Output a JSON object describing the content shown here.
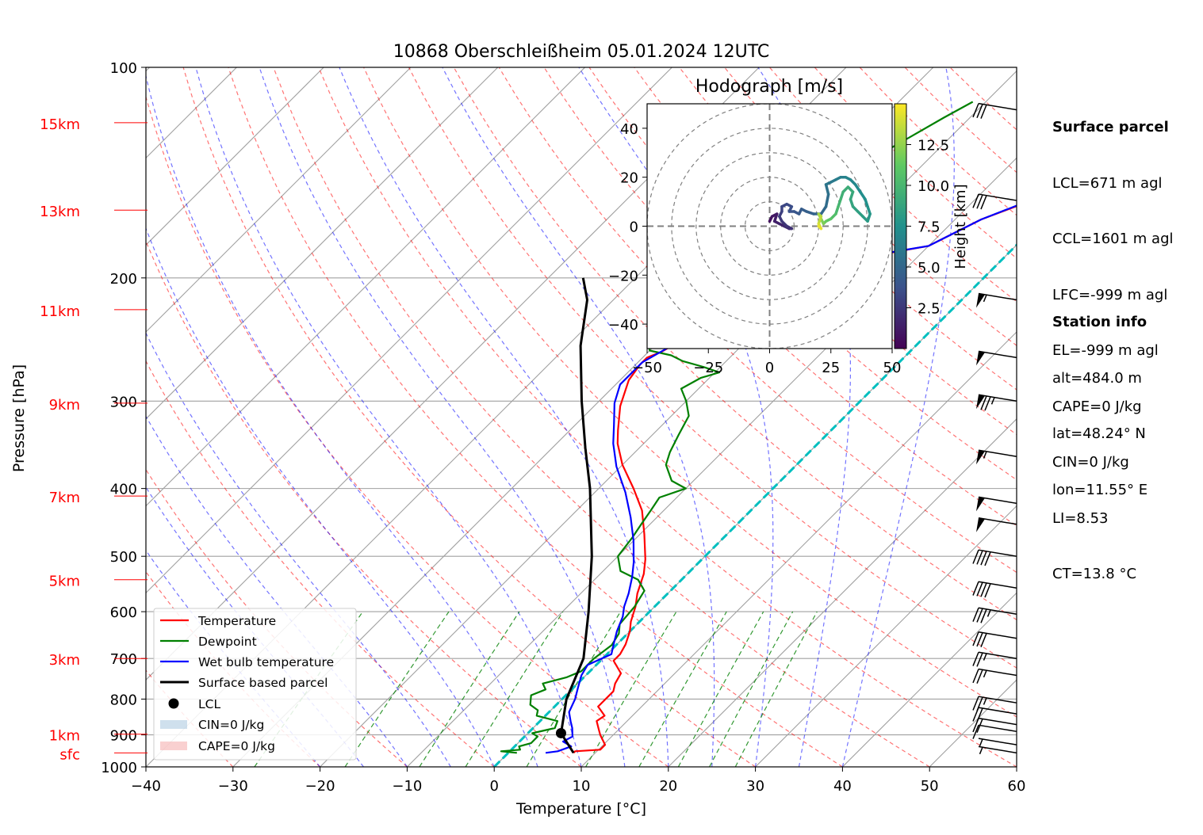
{
  "chart_data": {
    "type": "skew-t",
    "title": "10868 Oberschleißheim 05.01.2024 12UTC",
    "xlabel": "Temperature [°C]",
    "ylabel": "Pressure [hPa]",
    "xlim": [
      -40,
      60
    ],
    "ylim": [
      1000,
      100
    ],
    "x_ticks": [
      -40,
      -30,
      -20,
      -10,
      0,
      10,
      20,
      30,
      40,
      50,
      60
    ],
    "x_tick_labels": [
      "−40",
      "−30",
      "−20",
      "−10",
      "0",
      "10",
      "20",
      "30",
      "40",
      "50",
      "60"
    ],
    "p_ticks": [
      100,
      200,
      300,
      400,
      500,
      600,
      700,
      800,
      900,
      1000
    ],
    "height_labels": [
      {
        "text": "sfc",
        "p": 955
      },
      {
        "text": "1km",
        "p": 898
      },
      {
        "text": "3km",
        "p": 700
      },
      {
        "text": "5km",
        "p": 540
      },
      {
        "text": "7km",
        "p": 410
      },
      {
        "text": "9km",
        "p": 302
      },
      {
        "text": "11km",
        "p": 222
      },
      {
        "text": "13km",
        "p": 160
      },
      {
        "text": "15km",
        "p": 120
      }
    ],
    "colors": {
      "temperature": "#ff0000",
      "dewpoint": "#008000",
      "wetbulb": "#0000ff",
      "parcel": "#000000",
      "zero_isotherm": "#00bfbf",
      "dry_adiabat": "#ff0000",
      "moist_adiabat": "#0000ff",
      "mixing_ratio": "#008000",
      "isotherm": "#a0a0a0"
    },
    "series": [
      {
        "name": "Temperature",
        "points": [
          [
            7.5,
            955
          ],
          [
            7.5,
            950
          ],
          [
            10.2,
            945
          ],
          [
            10.2,
            930
          ],
          [
            8.5,
            900
          ],
          [
            7.5,
            880
          ],
          [
            6.5,
            860
          ],
          [
            6.8,
            845
          ],
          [
            5,
            820
          ],
          [
            5,
            780
          ],
          [
            4.3,
            760
          ],
          [
            3.8,
            735
          ],
          [
            1.5,
            705
          ],
          [
            1.5,
            690
          ],
          [
            1,
            668
          ],
          [
            0,
            640
          ],
          [
            -1,
            620
          ],
          [
            -2.2,
            590
          ],
          [
            -3.5,
            565
          ],
          [
            -5,
            530
          ],
          [
            -6.5,
            505
          ],
          [
            -9.5,
            465
          ],
          [
            -12.5,
            430
          ],
          [
            -16,
            400
          ],
          [
            -20,
            370
          ],
          [
            -23,
            345
          ],
          [
            -24.5,
            330
          ],
          [
            -27,
            305
          ],
          [
            -29,
            280
          ],
          [
            -29.5,
            266
          ],
          [
            -29.5,
            260
          ],
          [
            -28.5,
            255
          ],
          [
            -27.5,
            245
          ],
          [
            -26.5,
            240
          ],
          [
            -26.5,
            228
          ],
          [
            -24.5,
            220
          ],
          [
            -24.5,
            212
          ],
          [
            -25,
            205
          ],
          [
            -24.5,
            198
          ],
          [
            -22,
            194
          ],
          [
            -10,
            180
          ],
          [
            -7,
            165
          ],
          [
            -1.5,
            150
          ],
          [
            -1.5,
            138
          ],
          [
            -3,
            130
          ],
          [
            -3,
            120
          ],
          [
            -1.5,
            110
          ],
          [
            -1.5,
            100
          ],
          [
            1.5,
            96
          ],
          [
            3.5,
            90
          ],
          [
            6.5,
            85
          ],
          [
            7.5,
            78
          ],
          [
            8,
            74
          ]
        ]
      },
      {
        "name": "Dewpoint",
        "points": [
          [
            1,
            955
          ],
          [
            -1,
            950
          ],
          [
            1,
            945
          ],
          [
            0.5,
            935
          ],
          [
            1.5,
            925
          ],
          [
            1.5,
            905
          ],
          [
            0.5,
            895
          ],
          [
            2.5,
            880
          ],
          [
            2,
            860
          ],
          [
            -1,
            845
          ],
          [
            -1.5,
            830
          ],
          [
            -3,
            815
          ],
          [
            -4,
            790
          ],
          [
            -3,
            775
          ],
          [
            -4,
            760
          ],
          [
            -2,
            745
          ],
          [
            -1,
            730
          ],
          [
            -1,
            700
          ],
          [
            -0.5,
            670
          ],
          [
            -1,
            645
          ],
          [
            -2,
            625
          ],
          [
            -2.3,
            590
          ],
          [
            -3,
            560
          ],
          [
            -5,
            540
          ],
          [
            -8,
            525
          ],
          [
            -10,
            500
          ],
          [
            -10.5,
            470
          ],
          [
            -11,
            450
          ],
          [
            -11.5,
            430
          ],
          [
            -12,
            412
          ],
          [
            -10,
            400
          ],
          [
            -12.5,
            390
          ],
          [
            -15,
            370
          ],
          [
            -16,
            355
          ],
          [
            -17,
            335
          ],
          [
            -18,
            315
          ],
          [
            -20,
            300
          ],
          [
            -22,
            288
          ],
          [
            -21,
            278
          ],
          [
            -19.5,
            273
          ],
          [
            -22,
            268
          ],
          [
            -25,
            263
          ],
          [
            -27,
            258
          ],
          [
            -30,
            254
          ],
          [
            -31,
            248
          ],
          [
            -30,
            240
          ],
          [
            -30,
            230
          ],
          [
            -31,
            220
          ],
          [
            -31.5,
            212
          ],
          [
            -32,
            205
          ],
          [
            -31,
            195
          ],
          [
            -31.5,
            185
          ],
          [
            -30,
            170
          ],
          [
            -28,
            158
          ],
          [
            -27,
            145
          ],
          [
            -25.5,
            130
          ],
          [
            -23,
            118
          ],
          [
            -21.5,
            112
          ]
        ]
      },
      {
        "name": "Wet bulb temperature",
        "points": [
          [
            4.3,
            955
          ],
          [
            5.5,
            950
          ],
          [
            6.5,
            935
          ],
          [
            5,
            920
          ],
          [
            5.5,
            905
          ],
          [
            4.5,
            880
          ],
          [
            3.5,
            860
          ],
          [
            2.3,
            835
          ],
          [
            1.5,
            800
          ],
          [
            0.5,
            770
          ],
          [
            -0.5,
            740
          ],
          [
            -1,
            715
          ],
          [
            0.5,
            690
          ],
          [
            -0.5,
            665
          ],
          [
            -1.5,
            640
          ],
          [
            -2.5,
            610
          ],
          [
            -3.5,
            590
          ],
          [
            -4.5,
            565
          ],
          [
            -6,
            535
          ],
          [
            -7.5,
            510
          ],
          [
            -10,
            475
          ],
          [
            -13,
            440
          ],
          [
            -16.5,
            405
          ],
          [
            -20.5,
            372
          ],
          [
            -23.5,
            345
          ],
          [
            -25.5,
            325
          ],
          [
            -28,
            302
          ],
          [
            -29.5,
            284
          ],
          [
            -29.5,
            264
          ],
          [
            -27.5,
            245
          ],
          [
            -27,
            228
          ],
          [
            -25,
            215
          ],
          [
            -25,
            200
          ],
          [
            -22,
            193
          ],
          [
            -10,
            180
          ],
          [
            -7,
            165
          ],
          [
            -1.8,
            150
          ],
          [
            -1.5,
            138
          ],
          [
            -2.5,
            130
          ],
          [
            -2.8,
            120
          ],
          [
            -1.5,
            110
          ],
          [
            -1.5,
            100
          ],
          [
            1.5,
            96
          ],
          [
            3.5,
            90
          ],
          [
            6.5,
            85
          ],
          [
            7.5,
            78
          ],
          [
            7.8,
            74
          ]
        ]
      },
      {
        "name": "Surface based parcel",
        "points": [
          [
            7.5,
            955
          ],
          [
            3.8,
            895
          ],
          [
            0.5,
            800
          ],
          [
            -2.2,
            700
          ],
          [
            -7,
            600
          ],
          [
            -13,
            500
          ],
          [
            -21,
            400
          ],
          [
            -26.2,
            350
          ],
          [
            -32,
            300
          ],
          [
            -38.5,
            250
          ],
          [
            -43,
            215
          ],
          [
            -46,
            200
          ]
        ]
      }
    ],
    "lcl": {
      "t": 3.8,
      "p": 895
    },
    "legend": {
      "position": "lower-left",
      "entries": [
        "Temperature",
        "Dewpoint",
        "Wet bulb temperature",
        "Surface based parcel",
        "LCL",
        "CIN=0 J/kg",
        "CAPE=0 J/kg"
      ]
    },
    "wind_barbs": [
      {
        "p": 955,
        "speed_kt": 5
      },
      {
        "p": 930,
        "speed_kt": 5
      },
      {
        "p": 890,
        "speed_kt": 10
      },
      {
        "p": 870,
        "speed_kt": 20
      },
      {
        "p": 840,
        "speed_kt": 20
      },
      {
        "p": 810,
        "speed_kt": 25
      },
      {
        "p": 740,
        "speed_kt": 25
      },
      {
        "p": 700,
        "speed_kt": 25
      },
      {
        "p": 655,
        "speed_kt": 30
      },
      {
        "p": 605,
        "speed_kt": 35
      },
      {
        "p": 555,
        "speed_kt": 40
      },
      {
        "p": 500,
        "speed_kt": 40
      },
      {
        "p": 450,
        "speed_kt": 50
      },
      {
        "p": 420,
        "speed_kt": 50
      },
      {
        "p": 360,
        "speed_kt": 55
      },
      {
        "p": 300,
        "speed_kt": 75
      },
      {
        "p": 260,
        "speed_kt": 50
      },
      {
        "p": 215,
        "speed_kt": 55
      },
      {
        "p": 155,
        "speed_kt": 30
      },
      {
        "p": 115,
        "speed_kt": 30
      }
    ],
    "hodograph": {
      "title": "Hodograph [m/s]",
      "xlim": [
        -50,
        50
      ],
      "ylim": [
        -50,
        50
      ],
      "ticks": [
        -50,
        -25,
        0,
        25,
        50
      ],
      "tick_labels": [
        "−50",
        "−25",
        "0",
        "25",
        "50"
      ],
      "yticks": [
        -40,
        -20,
        0,
        20,
        40
      ],
      "ytick_labels": [
        "−40",
        "−20",
        "0",
        "20",
        "40"
      ],
      "rings": [
        10,
        20,
        30,
        40,
        50
      ],
      "colorbar_label": "Height [km]",
      "colorbar_ticks": [
        "2.5",
        "5.0",
        "7.5",
        "10.0",
        "12.5"
      ],
      "colorbar_values": [
        2.5,
        5.0,
        7.5,
        10.0,
        12.5
      ],
      "colorbar_range": [
        0,
        15
      ],
      "trace": [
        [
          0,
          2,
          0.4
        ],
        [
          1,
          4,
          0.7
        ],
        [
          3,
          5,
          1.0
        ],
        [
          2,
          2,
          1.2
        ],
        [
          4,
          1,
          1.4
        ],
        [
          6,
          0,
          1.6
        ],
        [
          8,
          -1,
          1.8
        ],
        [
          9,
          -1,
          2.0
        ],
        [
          7,
          0,
          2.2
        ],
        [
          5,
          2,
          2.4
        ],
        [
          4,
          4,
          2.6
        ],
        [
          5,
          6,
          2.8
        ],
        [
          5,
          8,
          3.0
        ],
        [
          7,
          9,
          3.2
        ],
        [
          9,
          8,
          3.4
        ],
        [
          8,
          6,
          3.6
        ],
        [
          10,
          6,
          3.8
        ],
        [
          12,
          5,
          4.0
        ],
        [
          13,
          7,
          4.2
        ],
        [
          15,
          6,
          4.4
        ],
        [
          18,
          5,
          4.6
        ],
        [
          21,
          5,
          4.8
        ],
        [
          23,
          8,
          5.0
        ],
        [
          24,
          13,
          5.3
        ],
        [
          23,
          17,
          5.6
        ],
        [
          25,
          18,
          5.9
        ],
        [
          27,
          19,
          6.1
        ],
        [
          29,
          20,
          6.3
        ],
        [
          31,
          20,
          6.5
        ],
        [
          33,
          19,
          6.7
        ],
        [
          35,
          17,
          6.9
        ],
        [
          37,
          14,
          7.1
        ],
        [
          39,
          11,
          7.3
        ],
        [
          40,
          8,
          7.5
        ],
        [
          41,
          5,
          7.7
        ],
        [
          40,
          2,
          7.9
        ],
        [
          38,
          4,
          8.1
        ],
        [
          36,
          6,
          8.3
        ],
        [
          34,
          8,
          8.5
        ],
        [
          33,
          11,
          8.7
        ],
        [
          34,
          14,
          8.9
        ],
        [
          32,
          16,
          9.1
        ],
        [
          30,
          14,
          9.3
        ],
        [
          29,
          11,
          9.5
        ],
        [
          28,
          8,
          9.8
        ],
        [
          27,
          5,
          10.1
        ],
        [
          25,
          3,
          10.5
        ],
        [
          23,
          2,
          11.0
        ],
        [
          22,
          1,
          11.5
        ],
        [
          21,
          3,
          12.0
        ],
        [
          20,
          5,
          12.5
        ],
        [
          21,
          4,
          13.0
        ],
        [
          20,
          1,
          13.5
        ],
        [
          21,
          -1,
          14.0
        ],
        [
          20,
          0,
          14.5
        ]
      ]
    }
  },
  "info": {
    "surface_header": "Surface parcel",
    "surface_lines": [
      "LCL=671 m agl",
      "CCL=1601 m agl",
      "LFC=-999 m agl",
      "EL=-999 m agl",
      "CAPE=0 J/kg",
      "CIN=0 J/kg",
      "LI=8.53",
      "CT=13.8 °C"
    ],
    "station_header": "Station info",
    "station_lines": [
      "alt=484.0 m",
      "lat=48.24° N",
      "lon=11.55° E"
    ]
  }
}
